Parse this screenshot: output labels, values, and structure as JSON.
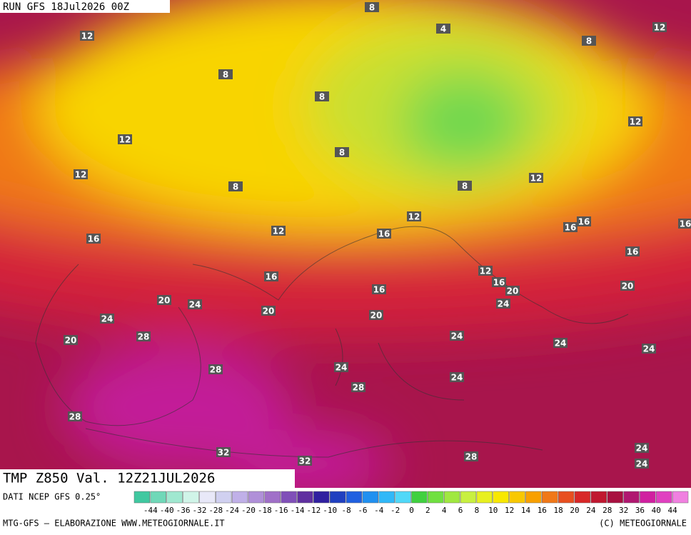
{
  "header": {
    "run": "RUN GFS 18Jul2026 00Z"
  },
  "footer": {
    "field": "TMP Z850 Val. 12Z21JUL2026",
    "source": "DATI NCEP GFS 0.25°",
    "credit": "MTG-GFS — ELABORAZIONE WWW.METEOGIORNALE.IT",
    "copyright": "(C) METEOGIORNALE"
  },
  "legend": {
    "ticks": [
      -44,
      -40,
      -36,
      -32,
      -28,
      -24,
      -20,
      -18,
      -16,
      -14,
      -12,
      -10,
      -8,
      -6,
      -4,
      -2,
      0,
      2,
      4,
      6,
      8,
      10,
      12,
      14,
      16,
      18,
      20,
      24,
      28,
      32,
      36,
      40,
      44
    ],
    "colors": [
      "#40c8a0",
      "#70d8b8",
      "#a0e8d0",
      "#d0f4e8",
      "#e8e8f8",
      "#d0d0f0",
      "#c0b0e8",
      "#b090d8",
      "#a070c8",
      "#8050b8",
      "#6030a0",
      "#3020a0",
      "#2040c0",
      "#2060e0",
      "#2090f0",
      "#30b8f8",
      "#50d8f8",
      "#40d040",
      "#70e040",
      "#a0e840",
      "#c8f040",
      "#e8f020",
      "#f8e800",
      "#f8c800",
      "#f8a000",
      "#f07818",
      "#e85020",
      "#d82828",
      "#c01830",
      "#a81040",
      "#b01870",
      "#d020a0",
      "#e040c0",
      "#f080e0"
    ]
  },
  "map": {
    "labels": [
      8,
      4,
      12,
      12,
      8,
      8,
      8,
      12,
      12,
      8,
      12,
      12,
      8,
      8,
      12,
      16,
      16,
      16,
      12,
      16,
      16,
      16,
      12,
      16,
      16,
      20,
      16,
      20,
      20,
      24,
      24,
      20,
      20,
      24,
      28,
      24,
      20,
      24,
      24,
      28,
      24,
      24,
      28,
      28,
      32,
      32,
      28,
      24,
      24
    ]
  }
}
